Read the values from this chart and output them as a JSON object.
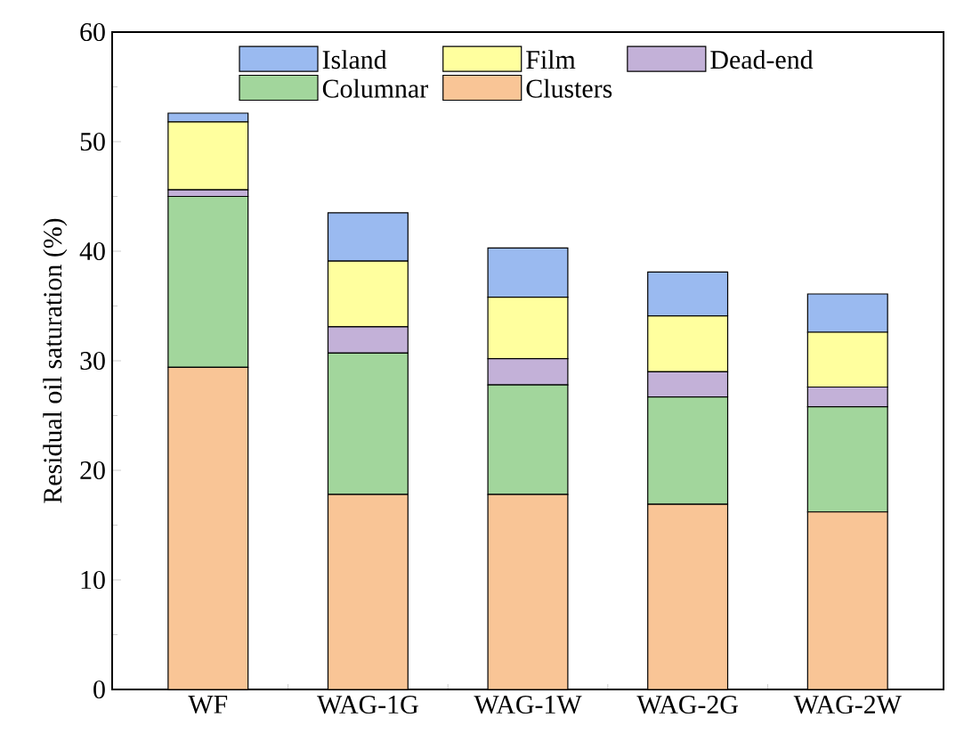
{
  "chart_data": {
    "type": "bar",
    "stacked": true,
    "ylabel": "Residual oil saturation (%)",
    "categories": [
      "WF",
      "WAG-1G",
      "WAG-1W",
      "WAG-2G",
      "WAG-2W"
    ],
    "series": [
      {
        "name": "Clusters",
        "color": "#f9c596",
        "values": [
          29.4,
          17.8,
          17.8,
          16.9,
          16.2
        ]
      },
      {
        "name": "Columnar",
        "color": "#a2d69c",
        "values": [
          15.6,
          12.9,
          10.0,
          9.8,
          9.6
        ]
      },
      {
        "name": "Dead-end",
        "color": "#c3b1d8",
        "values": [
          0.6,
          2.4,
          2.4,
          2.3,
          1.8
        ]
      },
      {
        "name": "Film",
        "color": "#ffff9e",
        "values": [
          6.2,
          6.0,
          5.6,
          5.1,
          5.0
        ]
      },
      {
        "name": "Island",
        "color": "#9abaf0",
        "values": [
          0.8,
          4.4,
          4.5,
          4.0,
          3.5
        ]
      }
    ],
    "ylim": [
      0,
      60
    ],
    "yticks": [
      0,
      10,
      20,
      30,
      40,
      50,
      60
    ],
    "legend": "top",
    "grid": false
  }
}
